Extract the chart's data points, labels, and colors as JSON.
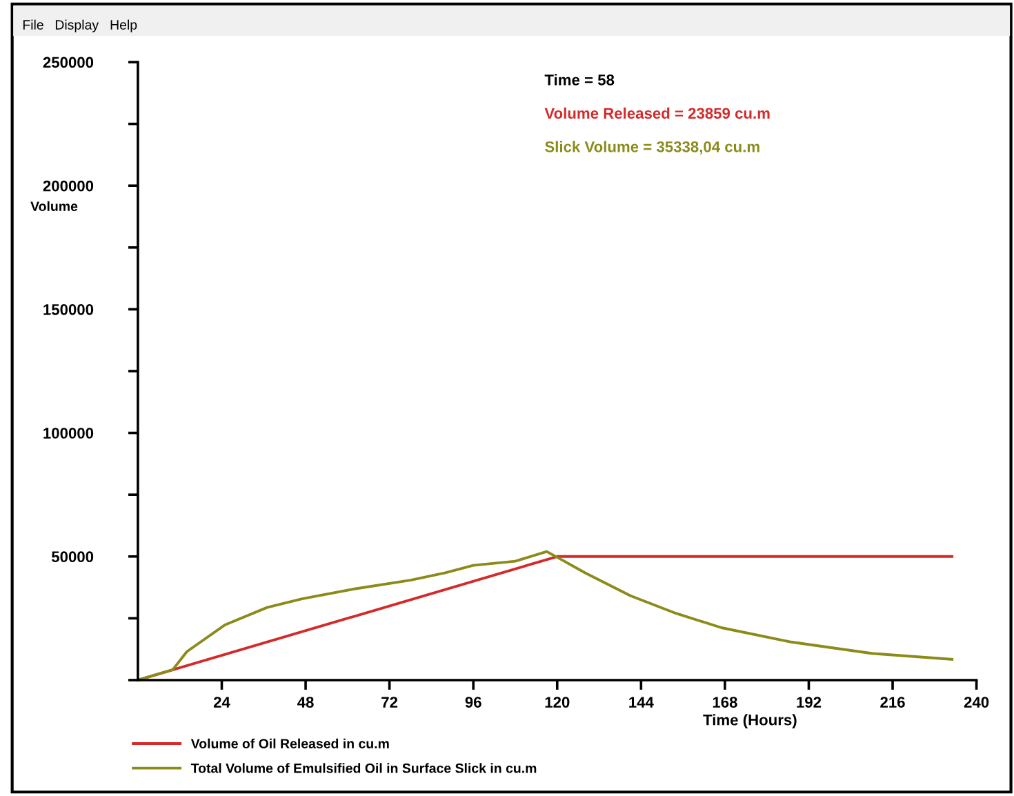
{
  "chart_data": {
    "type": "line",
    "xlabel": "Time (Hours)",
    "ylabel": "Volume",
    "annotations": [
      "File",
      "Display",
      "Help",
      "Time = 58",
      "Volume Released = 23859 cu.m",
      "Slick Volume = 35338,04 cu.m"
    ],
    "series": [
      {
        "name": "Volume of Oil Released in cu.m",
        "color": "#d42a2a",
        "x": [
          0,
          120,
          233
        ],
        "values": [
          0,
          50000,
          50000
        ]
      },
      {
        "name": "Total Volume of Emulsified Oil in Surface Slick in cu.m",
        "color": "#8b8b1a",
        "x": [
          0,
          10,
          14,
          25,
          37,
          47,
          62,
          78,
          88,
          96,
          108,
          117,
          120,
          128,
          141,
          154,
          167,
          187,
          210,
          233
        ],
        "values": [
          0,
          4250,
          11500,
          22400,
          29400,
          32900,
          36900,
          40400,
          43400,
          46400,
          48100,
          52000,
          49700,
          43400,
          34100,
          27000,
          21200,
          15400,
          10800,
          8400
        ]
      }
    ],
    "xlim": [
      0,
      240
    ],
    "xticks": [
      24,
      48,
      72,
      96,
      120,
      144,
      168,
      192,
      216,
      240
    ],
    "ylim": [
      0,
      250000
    ],
    "yticks": [
      {
        "value": 0,
        "label": null
      },
      {
        "value": 25000,
        "label": null
      },
      50000,
      {
        "value": 75000,
        "label": null
      },
      100000,
      {
        "value": 125000,
        "label": null
      },
      150000,
      {
        "value": 175000,
        "label": null
      },
      200000,
      {
        "value": 225000,
        "label": null
      },
      250000
    ],
    "grid": false,
    "legend": "bottom",
    "line_style": "solid",
    "marker": "none"
  }
}
